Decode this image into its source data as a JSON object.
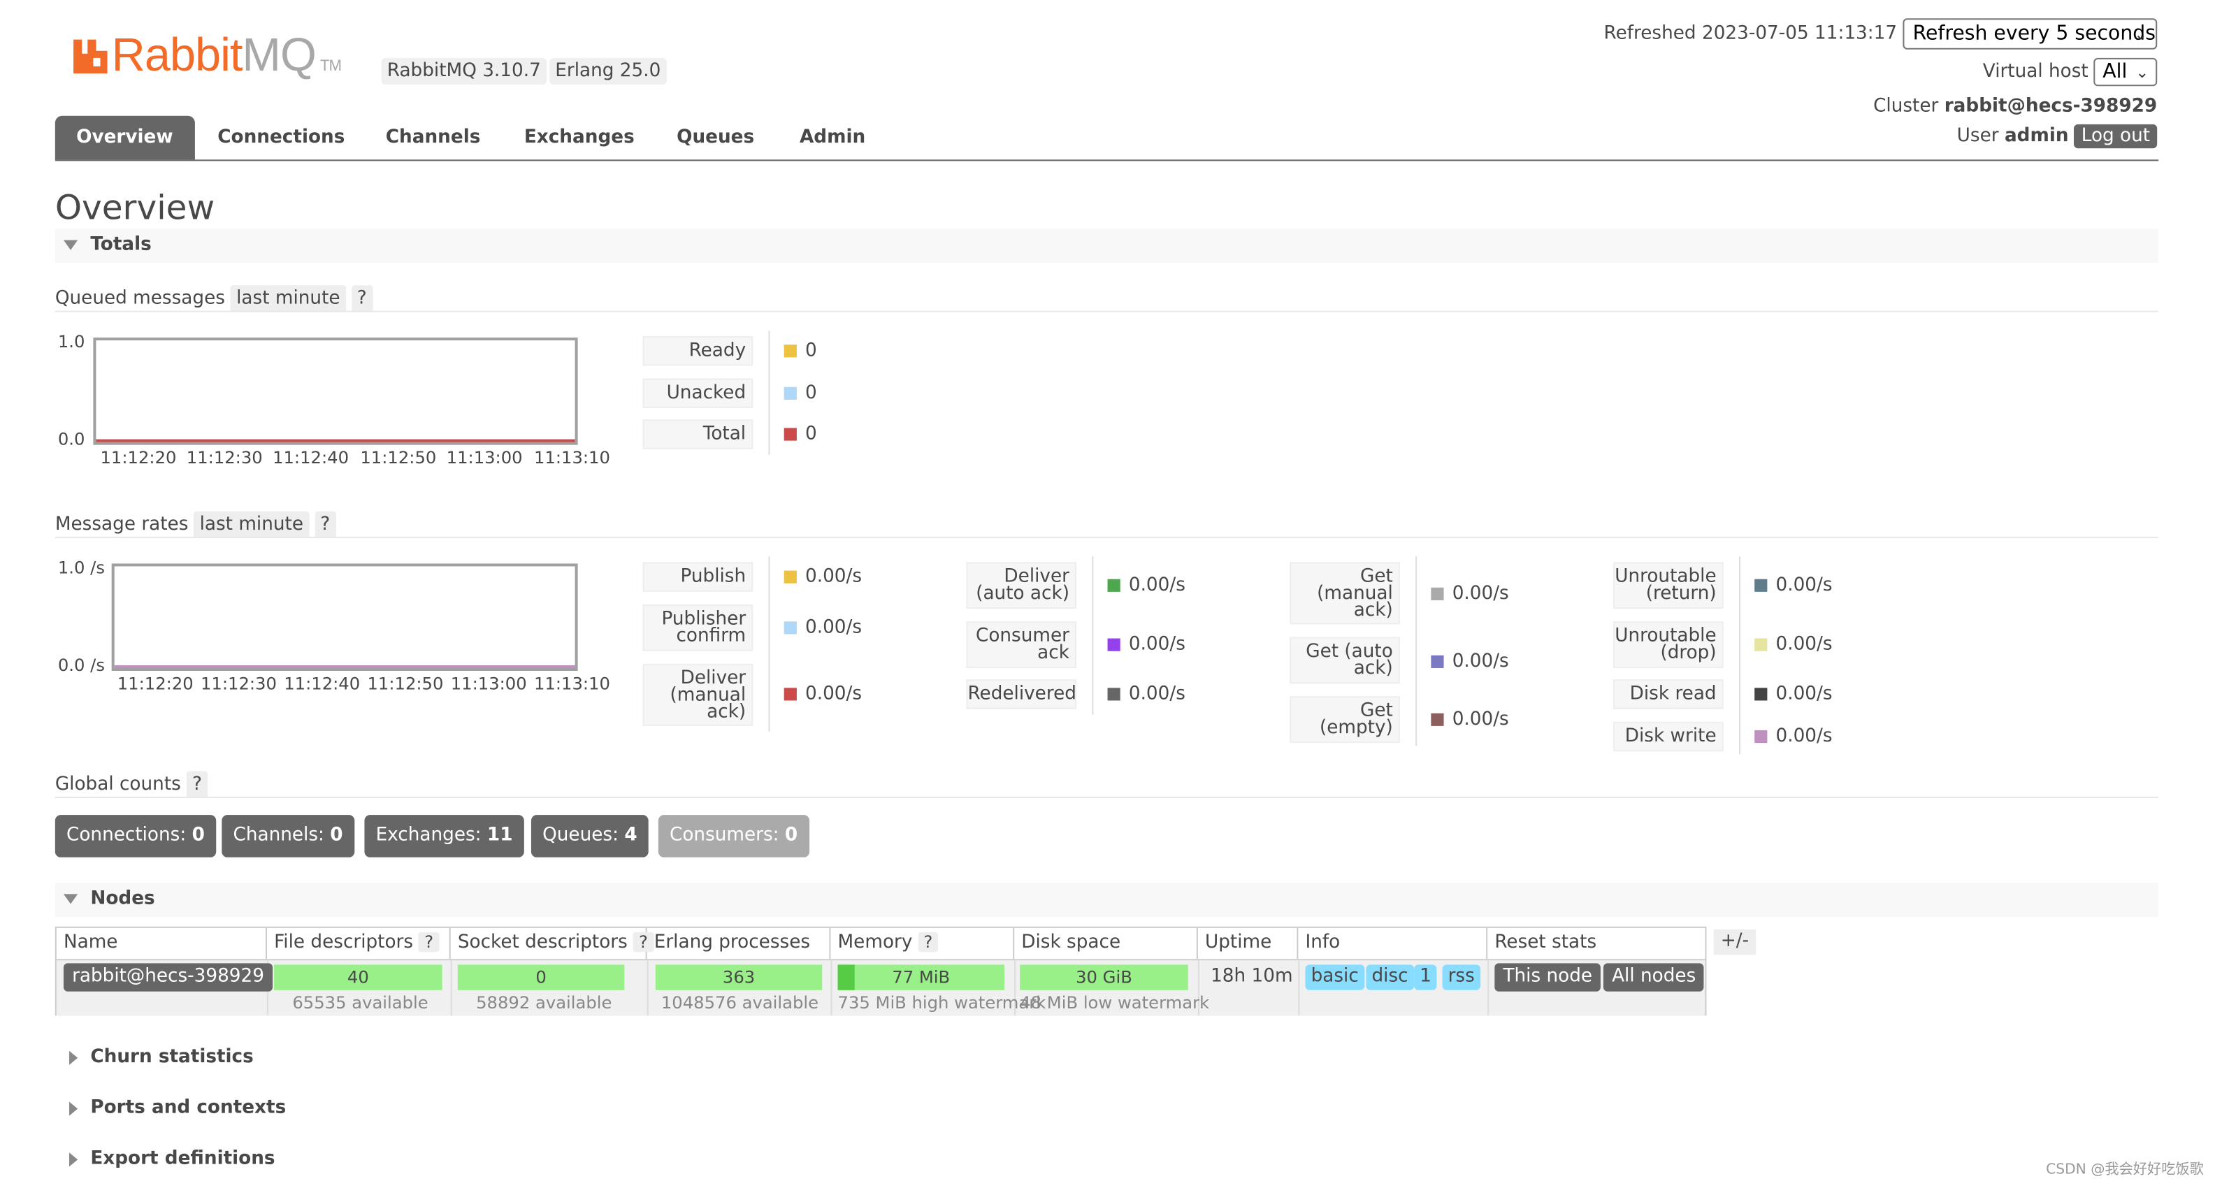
{
  "header": {
    "logo_text_a": "Rabbit",
    "logo_text_b": "MQ",
    "logo_tm": "TM",
    "rabbitmq_version": "RabbitMQ 3.10.7",
    "erlang_version": "Erlang 25.0",
    "refreshed_label": "Refreshed",
    "refreshed_time": "2023-07-05 11:13:17",
    "refresh_option": "Refresh every 5 seconds",
    "vhost_label": "Virtual host",
    "vhost_value": "All",
    "cluster_label": "Cluster",
    "cluster_value": "rabbit@hecs-398929",
    "user_label": "User",
    "user_value": "admin",
    "logout_label": "Log out",
    "brand_color": "#f26b29"
  },
  "tabs": [
    {
      "label": "Overview",
      "active": true
    },
    {
      "label": "Connections",
      "active": false
    },
    {
      "label": "Channels",
      "active": false
    },
    {
      "label": "Exchanges",
      "active": false
    },
    {
      "label": "Queues",
      "active": false
    },
    {
      "label": "Admin",
      "active": false
    }
  ],
  "page_title": "Overview",
  "totals": {
    "section_label": "Totals",
    "queued": {
      "heading": "Queued messages",
      "range": "last minute",
      "help": "?",
      "y_max": "1.0",
      "y_min": "0.0",
      "x_ticks": [
        "11:12:20",
        "11:12:30",
        "11:12:40",
        "11:12:50",
        "11:13:00",
        "11:13:10"
      ],
      "legend": [
        {
          "label": "Ready",
          "value": "0",
          "color": "#edc240"
        },
        {
          "label": "Unacked",
          "value": "0",
          "color": "#afd8f8"
        },
        {
          "label": "Total",
          "value": "0",
          "color": "#cb4b4b"
        }
      ]
    },
    "rates": {
      "heading": "Message rates",
      "range": "last minute",
      "help": "?",
      "y_max": "1.0 /s",
      "y_min": "0.0 /s",
      "x_ticks": [
        "11:12:20",
        "11:12:30",
        "11:12:40",
        "11:12:50",
        "11:13:00",
        "11:13:10"
      ],
      "col1": [
        {
          "label": "Publish",
          "value": "0.00/s",
          "color": "#edc240"
        },
        {
          "label": "Publisher confirm",
          "value": "0.00/s",
          "color": "#afd8f8"
        },
        {
          "label": "Deliver (manual ack)",
          "value": "0.00/s",
          "color": "#cb4b4b"
        }
      ],
      "col2": [
        {
          "label": "Deliver (auto ack)",
          "value": "0.00/s",
          "color": "#4da74d"
        },
        {
          "label": "Consumer ack",
          "value": "0.00/s",
          "color": "#9440ed"
        },
        {
          "label": "Redelivered",
          "value": "0.00/s",
          "color": "#666666"
        }
      ],
      "col3": [
        {
          "label": "Get (manual ack)",
          "value": "0.00/s",
          "color": "#aaaaaa"
        },
        {
          "label": "Get (auto ack)",
          "value": "0.00/s",
          "color": "#7c79c3"
        },
        {
          "label": "Get (empty)",
          "value": "0.00/s",
          "color": "#8d5e5e"
        }
      ],
      "col4": [
        {
          "label": "Unroutable (return)",
          "value": "0.00/s",
          "color": "#607b8b"
        },
        {
          "label": "Unroutable (drop)",
          "value": "0.00/s",
          "color": "#e5e5a0"
        },
        {
          "label": "Disk read",
          "value": "0.00/s",
          "color": "#444444"
        },
        {
          "label": "Disk write",
          "value": "0.00/s",
          "color": "#c090c0"
        }
      ]
    },
    "global": {
      "heading": "Global counts",
      "help": "?",
      "counts": [
        {
          "label": "Connections:",
          "value": "0"
        },
        {
          "label": "Channels:",
          "value": "0"
        },
        {
          "label": "Exchanges:",
          "value": "11"
        },
        {
          "label": "Queues:",
          "value": "4"
        },
        {
          "label": "Consumers:",
          "value": "0"
        }
      ]
    }
  },
  "nodes": {
    "section_label": "Nodes",
    "columns": [
      "Name",
      "File descriptors",
      "Socket descriptors",
      "Erlang processes",
      "Memory",
      "Disk space",
      "Uptime",
      "Info",
      "Reset stats"
    ],
    "help": "?",
    "plus_minus": "+/-",
    "row": {
      "name": "rabbit@hecs-398929",
      "fd": "40",
      "fd_sub": "65535 available",
      "sd": "0",
      "sd_sub": "58892 available",
      "ep": "363",
      "ep_sub": "1048576 available",
      "mem": "77 MiB",
      "mem_fill": 0.105,
      "mem_sub": "735 MiB high watermark",
      "disk": "30 GiB",
      "disk_sub": "48 MiB low watermark",
      "uptime": "18h 10m",
      "info": [
        "basic",
        "disc",
        "1",
        "rss"
      ],
      "reset_this": "This node",
      "reset_all": "All nodes"
    }
  },
  "collapsed_sections": [
    "Churn statistics",
    "Ports and contexts",
    "Export definitions"
  ],
  "watermark": "CSDN @我会好好吃饭歌"
}
